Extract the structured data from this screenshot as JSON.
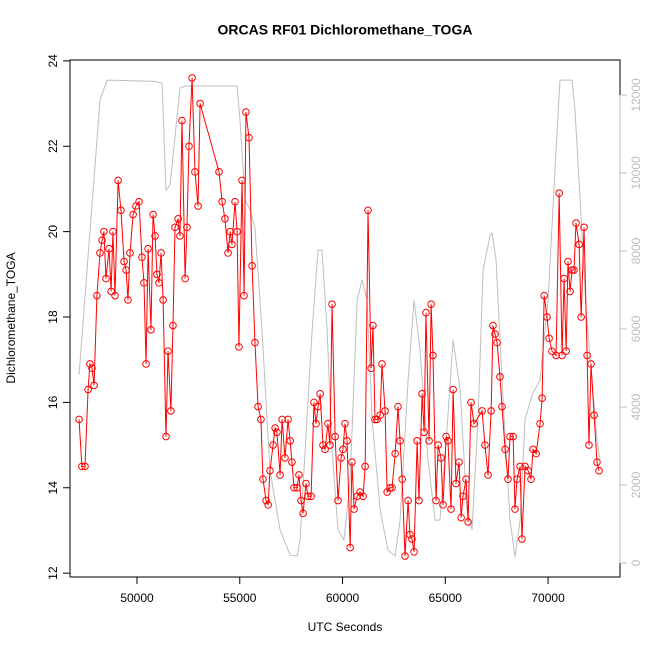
{
  "chart_data": {
    "type": "line",
    "title": "ORCAS RF01 Dichloromethane_TOGA",
    "x_label": "UTC Seconds",
    "y_label": "Dichloromethane_TOGA",
    "xlim": [
      46740,
      73500
    ],
    "ylim": [
      11.91,
      24.02
    ],
    "y2lim": [
      -359,
      12897
    ],
    "xticks": [
      50000,
      55000,
      60000,
      65000,
      70000
    ],
    "yticks": [
      12,
      14,
      16,
      18,
      20,
      22,
      24
    ],
    "y2ticks": [
      0,
      2000,
      4000,
      6000,
      8000,
      10000,
      12000
    ],
    "series": [
      {
        "color": "#ff0000",
        "markers": true,
        "x": [
          47180,
          47320,
          47470,
          47620,
          47710,
          47810,
          47910,
          48050,
          48200,
          48300,
          48390,
          48490,
          48640,
          48740,
          48830,
          48930,
          49080,
          49220,
          49370,
          49470,
          49560,
          49660,
          49810,
          49950,
          50100,
          50240,
          50340,
          50440,
          50540,
          50680,
          50780,
          50880,
          50970,
          51070,
          51170,
          51270,
          51410,
          51510,
          51650,
          51750,
          51850,
          52000,
          52090,
          52190,
          52340,
          52430,
          52530,
          52680,
          52820,
          52970,
          53070,
          53990,
          54140,
          54280,
          54430,
          54530,
          54620,
          54770,
          54870,
          54960,
          55110,
          55210,
          55300,
          55450,
          55600,
          55740,
          55890,
          56030,
          56130,
          56280,
          56380,
          56470,
          56620,
          56720,
          56810,
          56960,
          57060,
          57200,
          57350,
          57450,
          57540,
          57640,
          57790,
          57880,
          57980,
          58080,
          58220,
          58320,
          58470,
          58610,
          58710,
          58810,
          58910,
          59050,
          59150,
          59290,
          59390,
          59490,
          59640,
          59780,
          59930,
          60020,
          60120,
          60220,
          60370,
          60460,
          60560,
          60710,
          60850,
          61000,
          61100,
          61240,
          61390,
          61480,
          61580,
          61680,
          61830,
          61920,
          62070,
          62170,
          62310,
          62410,
          62560,
          62700,
          62800,
          62900,
          63040,
          63190,
          63280,
          63380,
          63480,
          63630,
          63720,
          63870,
          63970,
          64060,
          64210,
          64310,
          64400,
          64550,
          64650,
          64790,
          64890,
          65040,
          65130,
          65280,
          65380,
          65520,
          65670,
          65770,
          65860,
          66010,
          66110,
          66250,
          66400,
          66790,
          66930,
          67080,
          67230,
          67320,
          67420,
          67520,
          67660,
          67760,
          67910,
          68050,
          68150,
          68300,
          68390,
          68490,
          68640,
          68730,
          68880,
          69030,
          69170,
          69270,
          69420,
          69610,
          69710,
          69810,
          69950,
          70050,
          70190,
          70390,
          70540,
          70680,
          70780,
          70880,
          70970,
          71070,
          71170,
          71260,
          71360,
          71510,
          71610,
          71750,
          71900,
          71990,
          72090,
          72240,
          72380,
          72480
        ],
        "values": [
          15.6,
          14.5,
          14.5,
          16.3,
          16.9,
          16.8,
          16.4,
          18.5,
          19.5,
          19.8,
          20.0,
          18.9,
          19.6,
          18.6,
          20.0,
          18.5,
          21.2,
          20.5,
          19.3,
          19.1,
          18.4,
          19.5,
          20.4,
          20.6,
          20.7,
          19.4,
          18.8,
          16.9,
          19.6,
          17.7,
          20.4,
          19.9,
          19.0,
          18.8,
          19.5,
          18.4,
          15.2,
          17.2,
          15.8,
          17.8,
          20.1,
          20.3,
          19.9,
          22.6,
          18.9,
          20.1,
          22.0,
          23.6,
          21.4,
          20.6,
          23.0,
          21.4,
          20.7,
          20.3,
          19.5,
          20.0,
          19.7,
          20.7,
          20.0,
          17.3,
          21.2,
          18.5,
          22.8,
          22.2,
          19.2,
          17.4,
          15.9,
          15.6,
          14.2,
          13.7,
          13.6,
          14.4,
          15.0,
          15.4,
          15.3,
          14.3,
          15.6,
          14.7,
          15.6,
          15.1,
          14.6,
          14.0,
          14.0,
          14.3,
          13.7,
          13.4,
          14.1,
          13.8,
          13.8,
          16.0,
          15.5,
          15.9,
          16.2,
          15.0,
          14.9,
          15.5,
          15.0,
          18.3,
          15.2,
          13.7,
          14.7,
          14.9,
          15.5,
          15.1,
          12.6,
          14.6,
          13.5,
          13.8,
          13.9,
          13.8,
          14.5,
          20.5,
          16.8,
          17.8,
          15.6,
          15.6,
          15.7,
          16.9,
          15.8,
          13.9,
          14.0,
          14.0,
          14.8,
          15.9,
          15.1,
          14.2,
          12.4,
          13.7,
          12.9,
          12.8,
          12.5,
          15.1,
          13.7,
          16.2,
          15.3,
          18.1,
          15.1,
          18.3,
          17.1,
          13.7,
          15.0,
          14.7,
          13.6,
          15.2,
          15.1,
          13.5,
          16.3,
          14.1,
          14.6,
          13.3,
          13.8,
          14.2,
          13.2,
          16.0,
          15.5,
          15.8,
          15.0,
          14.3,
          15.8,
          17.8,
          17.6,
          17.4,
          16.6,
          15.9,
          14.9,
          14.2,
          15.2,
          15.2,
          13.5,
          14.2,
          14.5,
          12.8,
          14.5,
          14.4,
          14.2,
          14.9,
          14.8,
          15.5,
          16.1,
          18.5,
          18.0,
          17.5,
          17.2,
          17.1,
          20.9,
          17.1,
          18.9,
          17.2,
          19.3,
          18.6,
          19.1,
          19.1,
          20.2,
          19.7,
          18.0,
          20.1,
          17.1,
          15.0,
          16.9,
          15.7,
          14.6,
          14.4
        ]
      },
      {
        "color": "#bebebe",
        "axis": "y2",
        "markers": false,
        "x": [
          47180,
          48200,
          48540,
          50880,
          51220,
          51410,
          51610,
          52090,
          52340,
          54870,
          55010,
          55260,
          55500,
          55740,
          56080,
          56470,
          56960,
          57450,
          57790,
          57930,
          58180,
          58520,
          58810,
          59000,
          59250,
          59490,
          59780,
          60070,
          60370,
          60710,
          60950,
          61190,
          61440,
          61830,
          62210,
          62560,
          62800,
          63190,
          63480,
          63770,
          64160,
          64500,
          64740,
          65080,
          65380,
          65720,
          66060,
          66300,
          66590,
          66840,
          67180,
          67280,
          67470,
          67810,
          68150,
          68390,
          68640,
          68880,
          69220,
          69610,
          70000,
          70390,
          70580,
          71170,
          71310,
          71560,
          71850,
          72140,
          72380,
          72530
        ],
        "values": [
          4820,
          11870,
          12380,
          12350,
          12300,
          9560,
          9690,
          12180,
          12230,
          12230,
          11360,
          9300,
          9050,
          8590,
          5970,
          2380,
          850,
          200,
          180,
          590,
          2900,
          5970,
          8030,
          8030,
          5970,
          2900,
          850,
          590,
          2130,
          6740,
          7260,
          6740,
          3670,
          1360,
          330,
          180,
          1100,
          4690,
          6740,
          5460,
          2640,
          1100,
          1100,
          3410,
          5720,
          4440,
          1360,
          850,
          3670,
          7510,
          8410,
          8460,
          7770,
          4180,
          1100,
          150,
          1100,
          3670,
          4310,
          4690,
          6740,
          10590,
          12380,
          12380,
          11620,
          9310,
          6490,
          4690,
          3150,
          2640
        ]
      }
    ]
  }
}
